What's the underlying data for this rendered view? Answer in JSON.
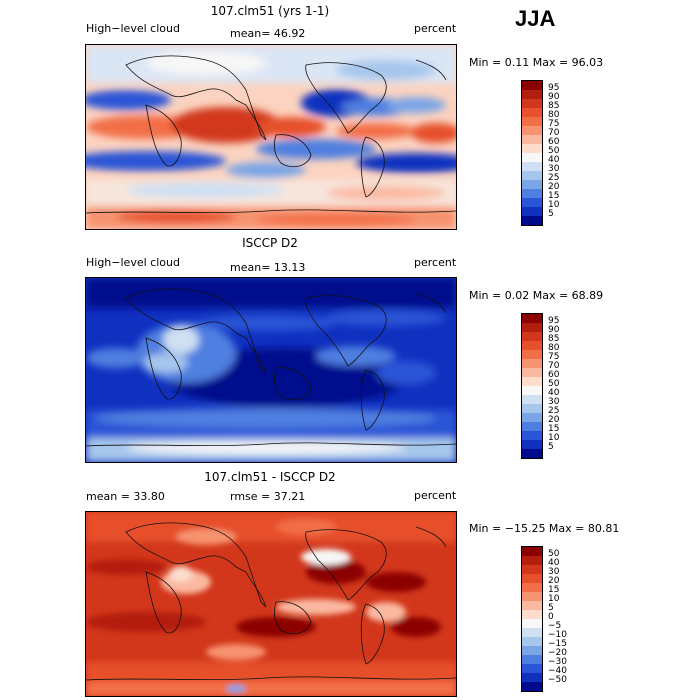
{
  "season": "JJA",
  "panels": [
    {
      "id": "model",
      "title": "107.clm51 (yrs 1-1)",
      "left_label": "High−level cloud",
      "stat_label": "mean=  46.92",
      "right_label": "percent",
      "minmax": "Min =    0.11  Max =   96.03",
      "scale": "abs"
    },
    {
      "id": "obs",
      "title": "ISCCP D2",
      "left_label": "High−level cloud",
      "stat_label": "mean=  13.13",
      "right_label": "percent",
      "minmax": "Min =    0.02  Max =   68.89",
      "scale": "abs"
    },
    {
      "id": "diff",
      "title": "107.clm51 - ISCCP D2",
      "left_label": "mean =  33.80",
      "stat_label": "rmse =  37.21",
      "right_label": "percent",
      "minmax": "Min = −15.25  Max =   80.81",
      "scale": "diff"
    }
  ],
  "colorbars": {
    "abs": {
      "levels": [
        "95",
        "90",
        "85",
        "80",
        "75",
        "70",
        "60",
        "50",
        "40",
        "30",
        "25",
        "20",
        "15",
        "10",
        "5"
      ],
      "colors": [
        "#8b0000",
        "#b41e0f",
        "#d2371b",
        "#e6502b",
        "#f26e46",
        "#f79370",
        "#fbb8a0",
        "#fddccc",
        "#f7f7f7",
        "#cfe0f3",
        "#a6c6ec",
        "#7aa5e6",
        "#4f7fe0",
        "#2a55d6",
        "#1030c0",
        "#000a8c"
      ]
    },
    "diff": {
      "levels": [
        "50",
        "40",
        "30",
        "20",
        "15",
        "10",
        "5",
        "0",
        "−5",
        "−10",
        "−15",
        "−20",
        "−30",
        "−40",
        "−50"
      ],
      "colors": [
        "#8b0000",
        "#b41e0f",
        "#d2371b",
        "#e6502b",
        "#f26e46",
        "#f79370",
        "#fbb8a0",
        "#fddccc",
        "#f7f7f7",
        "#cfe0f3",
        "#a6c6ec",
        "#7aa5e6",
        "#4f7fe0",
        "#2a55d6",
        "#1030c0",
        "#000a8c"
      ]
    }
  }
}
